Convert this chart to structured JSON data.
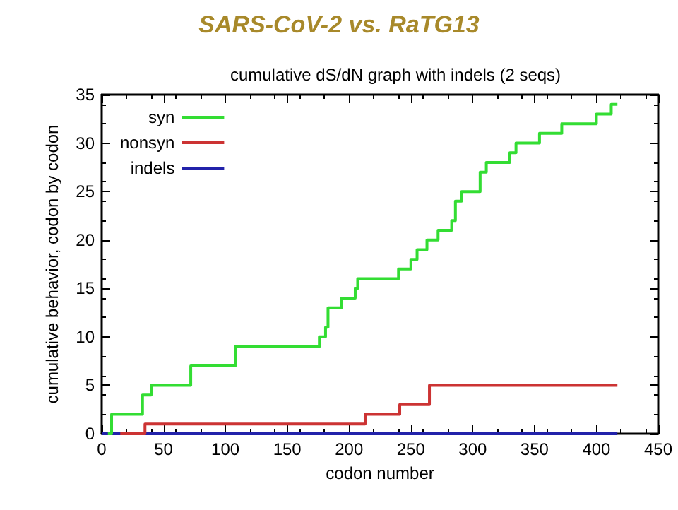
{
  "chart_data": {
    "type": "step",
    "title": "SARS-CoV-2 vs. RaTG13",
    "subtitle": "cumulative dS/dN graph with indels (2 seqs)",
    "xlabel": "codon number",
    "ylabel": "cumulative behavior, codon by codon",
    "series": [
      {
        "name": "syn",
        "color": "#33dd33",
        "x": [
          5,
          8,
          33,
          40,
          72,
          108,
          176,
          181,
          183,
          194,
          205,
          207,
          240,
          250,
          255,
          263,
          272,
          283,
          286,
          291,
          306,
          311,
          330,
          335,
          354,
          372,
          400,
          412,
          417
        ],
        "values": [
          0,
          2,
          4,
          5,
          7,
          9,
          10,
          11,
          13,
          14,
          15,
          16,
          17,
          18,
          19,
          20,
          21,
          22,
          24,
          25,
          27,
          28,
          29,
          30,
          31,
          32,
          33,
          34,
          34
        ]
      },
      {
        "name": "nonsyn",
        "color": "#cc3333",
        "x": [
          15,
          35,
          213,
          241,
          265,
          417
        ],
        "values": [
          0,
          1,
          2,
          3,
          5,
          5
        ]
      },
      {
        "name": "indels",
        "color": "#2222aa",
        "x": [
          0,
          417
        ],
        "values": [
          0,
          0
        ]
      }
    ],
    "xlim": [
      0,
      450
    ],
    "xticks": [
      0,
      50,
      100,
      150,
      200,
      250,
      300,
      350,
      400,
      450
    ],
    "ylim": [
      0,
      35
    ],
    "yticks": [
      0,
      5,
      10,
      15,
      20,
      25,
      30,
      35
    ],
    "grid": false,
    "legend": "top left",
    "marker": "none",
    "line_style": "solid"
  }
}
